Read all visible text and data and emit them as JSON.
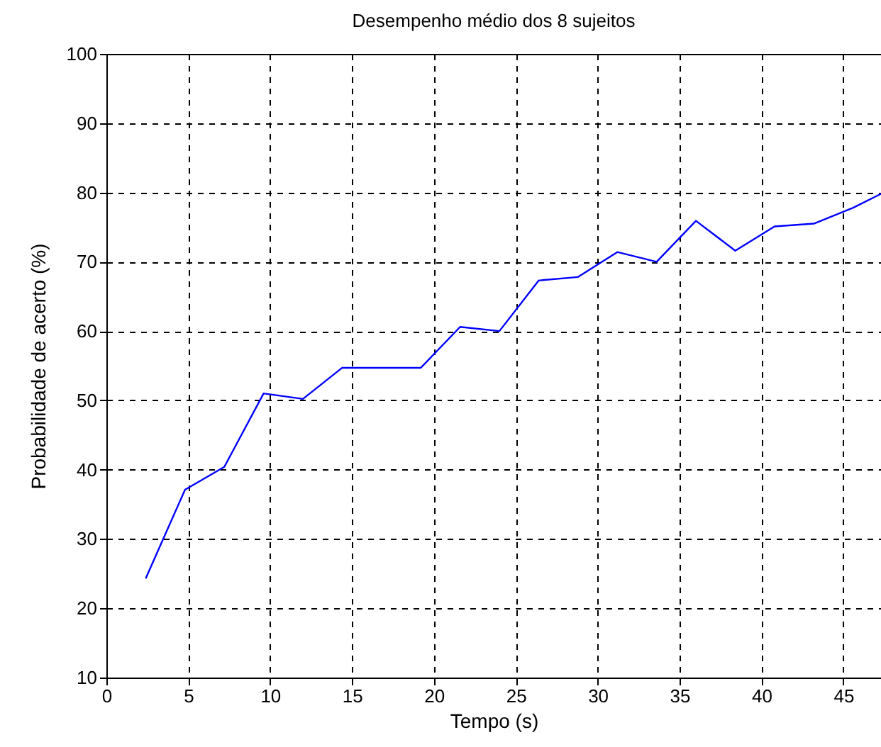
{
  "chart_data": {
    "type": "line",
    "title": "Desempenho médio dos 8 sujeitos",
    "xlabel": "Tempo (s)",
    "ylabel": "Probabilidade de acerto (%)",
    "x": [
      2.4,
      4.8,
      7.2,
      9.6,
      12,
      14.4,
      19.2,
      21.6,
      24,
      26.4,
      28.8,
      31.2,
      33.6,
      36,
      38.4,
      40.8,
      43.2,
      45.6,
      47.3
    ],
    "series": [
      {
        "color": "#0000ff",
        "values": [
          24.3,
          37.1,
          40.4,
          51,
          50.2,
          54.7,
          54.7,
          60.6,
          60,
          67.3,
          67.8,
          71.4,
          70,
          75.9,
          71.6,
          75.1,
          75.5,
          77.8,
          79.8
        ]
      }
    ],
    "xlim": [
      0,
      47.3
    ],
    "xticks": [
      0,
      5,
      10,
      15,
      20,
      25,
      30,
      35,
      40,
      45
    ],
    "ylim": [
      10,
      100
    ],
    "yticks": [
      10,
      20,
      30,
      40,
      50,
      60,
      70,
      80,
      90,
      100
    ],
    "grid": true,
    "marker": "none",
    "line_style": "solid"
  }
}
